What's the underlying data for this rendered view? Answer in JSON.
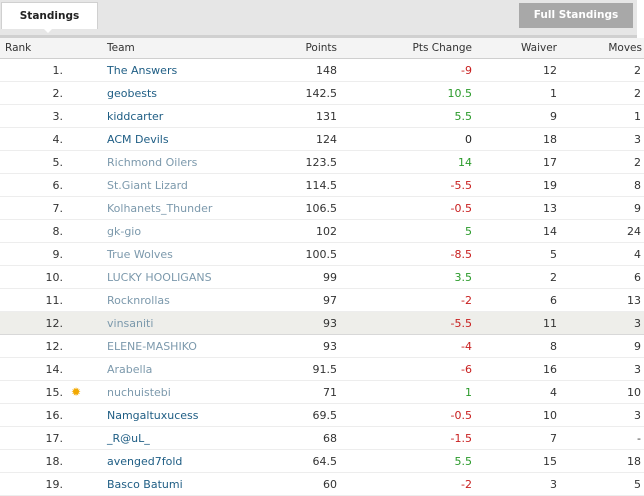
{
  "tabs": {
    "active": "Standings",
    "button": "Full Standings"
  },
  "columns": {
    "rank": "Rank",
    "team": "Team",
    "points": "Points",
    "change": "Pts Change",
    "waiver": "Waiver",
    "moves": "Moves"
  },
  "colors": {
    "link": "#1e5d84",
    "muted": "#7c99ac",
    "negative": "#c81e1e",
    "positive": "#2a9a2a",
    "star": "#f2a800"
  },
  "rows": [
    {
      "rank": "1.",
      "team": "The Answers",
      "points": "148",
      "change": "-9",
      "waiver": "12",
      "moves": "2",
      "style": "link",
      "sign": "neg"
    },
    {
      "rank": "2.",
      "team": "geobests",
      "points": "142.5",
      "change": "10.5",
      "waiver": "1",
      "moves": "2",
      "style": "link",
      "sign": "pos"
    },
    {
      "rank": "3.",
      "team": "kiddcarter",
      "points": "131",
      "change": "5.5",
      "waiver": "9",
      "moves": "1",
      "style": "link",
      "sign": "pos"
    },
    {
      "rank": "4.",
      "team": "ACM Devils",
      "points": "124",
      "change": "0",
      "waiver": "18",
      "moves": "3",
      "style": "link",
      "sign": "zero"
    },
    {
      "rank": "5.",
      "team": "Richmond Oilers",
      "points": "123.5",
      "change": "14",
      "waiver": "17",
      "moves": "2",
      "style": "muted",
      "sign": "pos"
    },
    {
      "rank": "6.",
      "team": "St.Giant Lizard",
      "points": "114.5",
      "change": "-5.5",
      "waiver": "19",
      "moves": "8",
      "style": "muted",
      "sign": "neg"
    },
    {
      "rank": "7.",
      "team": "Kolhanets_Thunder",
      "points": "106.5",
      "change": "-0.5",
      "waiver": "13",
      "moves": "9",
      "style": "muted",
      "sign": "neg"
    },
    {
      "rank": "8.",
      "team": "gk-gio",
      "points": "102",
      "change": "5",
      "waiver": "14",
      "moves": "24",
      "style": "muted",
      "sign": "pos"
    },
    {
      "rank": "9.",
      "team": "True Wolves",
      "points": "100.5",
      "change": "-8.5",
      "waiver": "5",
      "moves": "4",
      "style": "muted",
      "sign": "neg"
    },
    {
      "rank": "10.",
      "team": "LUCKY HOOLIGANS",
      "points": "99",
      "change": "3.5",
      "waiver": "2",
      "moves": "6",
      "style": "muted",
      "sign": "pos"
    },
    {
      "rank": "11.",
      "team": "Rocknrollas",
      "points": "97",
      "change": "-2",
      "waiver": "6",
      "moves": "13",
      "style": "muted",
      "sign": "neg"
    },
    {
      "rank": "12.",
      "team": "vinsaniti",
      "points": "93",
      "change": "-5.5",
      "waiver": "11",
      "moves": "3",
      "style": "muted",
      "sign": "neg",
      "highlight": true
    },
    {
      "rank": "12.",
      "team": "ELENE-MASHIKO",
      "points": "93",
      "change": "-4",
      "waiver": "8",
      "moves": "9",
      "style": "muted",
      "sign": "neg"
    },
    {
      "rank": "14.",
      "team": "Arabella",
      "points": "91.5",
      "change": "-6",
      "waiver": "16",
      "moves": "3",
      "style": "muted",
      "sign": "neg"
    },
    {
      "rank": "15.",
      "team": "nuchuistebi",
      "points": "71",
      "change": "1",
      "waiver": "4",
      "moves": "10",
      "style": "muted",
      "sign": "pos",
      "icon": "star-icon"
    },
    {
      "rank": "16.",
      "team": "Namgaltuxucess",
      "points": "69.5",
      "change": "-0.5",
      "waiver": "10",
      "moves": "3",
      "style": "link",
      "sign": "neg"
    },
    {
      "rank": "17.",
      "team": "_R@uL_",
      "points": "68",
      "change": "-1.5",
      "waiver": "7",
      "moves": "-",
      "style": "link",
      "sign": "neg"
    },
    {
      "rank": "18.",
      "team": "avenged7fold",
      "points": "64.5",
      "change": "5.5",
      "waiver": "15",
      "moves": "18",
      "style": "link",
      "sign": "pos"
    },
    {
      "rank": "19.",
      "team": "Basco Batumi",
      "points": "60",
      "change": "-2",
      "waiver": "3",
      "moves": "5",
      "style": "link",
      "sign": "neg"
    }
  ]
}
